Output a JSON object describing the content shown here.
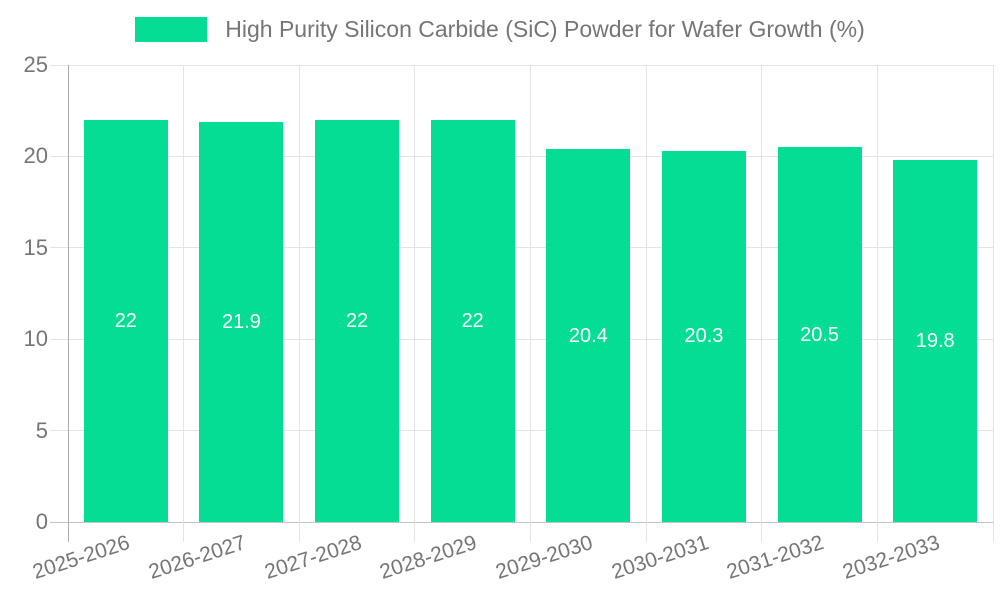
{
  "chart_data": {
    "type": "bar",
    "title": "High Purity Silicon Carbide (SiC) Powder for Wafer Growth (%)",
    "categories": [
      "2025-2026",
      "2026-2027",
      "2027-2028",
      "2028-2029",
      "2029-2030",
      "2030-2031",
      "2031-2032",
      "2032-2033"
    ],
    "values": [
      22,
      21.9,
      22,
      22,
      20.4,
      20.3,
      20.5,
      19.8
    ],
    "xlabel": "",
    "ylabel": "",
    "ylim": [
      0,
      25
    ],
    "yticks": [
      0,
      5,
      10,
      15,
      20,
      25
    ],
    "grid": true,
    "legend_position": "top-center",
    "bar_color": "#05DD95",
    "bar_label_color": "#FFFFFF",
    "text_color": "#757575",
    "grid_color": "#E4E4E4",
    "axis_color": "#ADADAD",
    "background_color": "#FFFFFF"
  }
}
